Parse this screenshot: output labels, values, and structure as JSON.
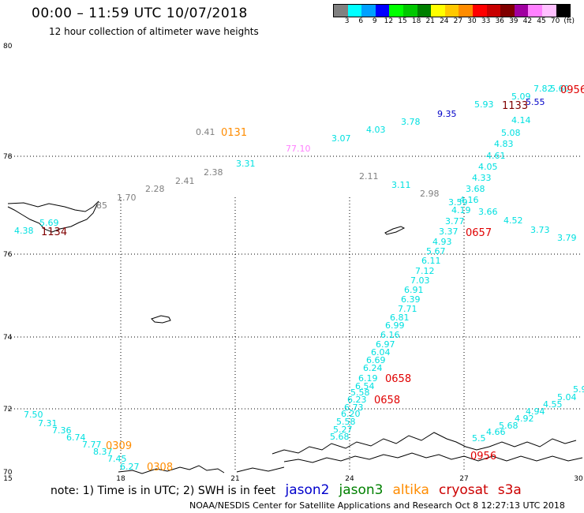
{
  "header": {
    "title": "00:00 – 11:59 UTC 10/07/2018",
    "subtitle": "12 hour collection of altimeter wave heights"
  },
  "color_scale": {
    "labels": [
      "3",
      "6",
      "9",
      "12",
      "15",
      "18",
      "21",
      "24",
      "27",
      "30",
      "33",
      "36",
      "39",
      "42",
      "45",
      "70",
      "(ft)"
    ],
    "colors": [
      "#808080",
      "#00ffff",
      "#00a0ff",
      "#0000ff",
      "#00ff00",
      "#00c800",
      "#008000",
      "#ffff00",
      "#ffc800",
      "#ff8c00",
      "#ff0000",
      "#c80000",
      "#800000",
      "#a000a0",
      "#ff80ff",
      "#ffc0ff",
      "#000000"
    ]
  },
  "axes": {
    "lon_ticks": [
      "15",
      "18",
      "21",
      "24",
      "27",
      "30"
    ],
    "lat_ticks": [
      "70",
      "72",
      "74",
      "76",
      "78",
      "80"
    ]
  },
  "note": {
    "text": "note: 1) Time is in UTC; 2) SWH is in feet",
    "satellites": [
      {
        "name": "jason2",
        "color": "#0000cc"
      },
      {
        "name": "jason3",
        "color": "#008000"
      },
      {
        "name": "altika",
        "color": "#ff8c00"
      },
      {
        "name": "cryosat",
        "color": "#cc0000"
      },
      {
        "name": "s3a",
        "color": "#cc0000"
      }
    ]
  },
  "footer": "NOAA/NESDIS Center for Satellite Applications and Research    Oct  8 12:27:13 UTC 2018",
  "observations": [
    {
      "t": "0.41",
      "c": "#808080"
    },
    {
      "t": "1.70",
      "c": "#808080"
    },
    {
      "t": "2.28",
      "c": "#808080"
    },
    {
      "t": "2.41",
      "c": "#808080"
    },
    {
      "t": "2.38",
      "c": "#808080"
    },
    {
      "t": "2.11",
      "c": "#808080"
    },
    {
      "t": "2.98",
      "c": "#808080"
    },
    {
      "t": "85",
      "c": "#808080"
    },
    {
      "t": "3.31",
      "c": "#00e0e0"
    },
    {
      "t": "3.07",
      "c": "#00e0e0"
    },
    {
      "t": "4.03",
      "c": "#00e0e0"
    },
    {
      "t": "3.78",
      "c": "#00e0e0"
    },
    {
      "t": "3.11",
      "c": "#00e0e0"
    },
    {
      "t": "5.93",
      "c": "#00e0e0"
    },
    {
      "t": "5.09",
      "c": "#00e0e0"
    },
    {
      "t": "7.82",
      "c": "#00e0e0"
    },
    {
      "t": "5.60",
      "c": "#00e0e0"
    },
    {
      "t": "4.14",
      "c": "#00e0e0"
    },
    {
      "t": "5.08",
      "c": "#00e0e0"
    },
    {
      "t": "4.83",
      "c": "#00e0e0"
    },
    {
      "t": "4.61",
      "c": "#00e0e0"
    },
    {
      "t": "4.05",
      "c": "#00e0e0"
    },
    {
      "t": "4.33",
      "c": "#00e0e0"
    },
    {
      "t": "3.68",
      "c": "#00e0e0"
    },
    {
      "t": "3.59",
      "c": "#00e0e0"
    },
    {
      "t": "4.16",
      "c": "#00e0e0"
    },
    {
      "t": "4.19",
      "c": "#00e0e0"
    },
    {
      "t": "3.66",
      "c": "#00e0e0"
    },
    {
      "t": "3.77",
      "c": "#00e0e0"
    },
    {
      "t": "4.52",
      "c": "#00e0e0"
    },
    {
      "t": "3.73",
      "c": "#00e0e0"
    },
    {
      "t": "3.79",
      "c": "#00e0e0"
    },
    {
      "t": "3.37",
      "c": "#00e0e0"
    },
    {
      "t": "4.93",
      "c": "#00e0e0"
    },
    {
      "t": "5.67",
      "c": "#00e0e0"
    },
    {
      "t": "6.11",
      "c": "#00e0e0"
    },
    {
      "t": "7.12",
      "c": "#00e0e0"
    },
    {
      "t": "7.03",
      "c": "#00e0e0"
    },
    {
      "t": "6.91",
      "c": "#00e0e0"
    },
    {
      "t": "6.39",
      "c": "#00e0e0"
    },
    {
      "t": "7.71",
      "c": "#00e0e0"
    },
    {
      "t": "6.81",
      "c": "#00e0e0"
    },
    {
      "t": "6.99",
      "c": "#00e0e0"
    },
    {
      "t": "6.16",
      "c": "#00e0e0"
    },
    {
      "t": "6.97",
      "c": "#00e0e0"
    },
    {
      "t": "6.04",
      "c": "#00e0e0"
    },
    {
      "t": "6.69",
      "c": "#00e0e0"
    },
    {
      "t": "6.24",
      "c": "#00e0e0"
    },
    {
      "t": "6.19",
      "c": "#00e0e0"
    },
    {
      "t": "6.54",
      "c": "#00e0e0"
    },
    {
      "t": "5.58",
      "c": "#00e0e0"
    },
    {
      "t": "6.23",
      "c": "#00e0e0"
    },
    {
      "t": "6.73",
      "c": "#00e0e0"
    },
    {
      "t": "6.20",
      "c": "#00e0e0"
    },
    {
      "t": "5.58",
      "c": "#00e0e0"
    },
    {
      "t": "5.27",
      "c": "#00e0e0"
    },
    {
      "t": "5.68",
      "c": "#00e0e0"
    },
    {
      "t": "5.9",
      "c": "#00e0e0"
    },
    {
      "t": "5.04",
      "c": "#00e0e0"
    },
    {
      "t": "4.55",
      "c": "#00e0e0"
    },
    {
      "t": "4.94",
      "c": "#00e0e0"
    },
    {
      "t": "4.92",
      "c": "#00e0e0"
    },
    {
      "t": "5.68",
      "c": "#00e0e0"
    },
    {
      "t": "4.66",
      "c": "#00e0e0"
    },
    {
      "t": "5.5",
      "c": "#00e0e0"
    },
    {
      "t": "7.50",
      "c": "#00e0e0"
    },
    {
      "t": "7.31",
      "c": "#00e0e0"
    },
    {
      "t": "7.36",
      "c": "#00e0e0"
    },
    {
      "t": "6.74",
      "c": "#00e0e0"
    },
    {
      "t": "7.77",
      "c": "#00e0e0"
    },
    {
      "t": "8.37",
      "c": "#00e0e0"
    },
    {
      "t": "7.45",
      "c": "#00e0e0"
    },
    {
      "t": "6.27",
      "c": "#00e0e0"
    },
    {
      "t": "4.38",
      "c": "#00e0e0"
    },
    {
      "t": "5.69",
      "c": "#00e0e0"
    },
    {
      "t": "9.35",
      "c": "#0000c8"
    },
    {
      "t": "5.55",
      "c": "#0000c8"
    },
    {
      "t": "77.10",
      "c": "#ff80ff"
    }
  ],
  "pass_times": [
    {
      "t": "0131",
      "c": "#ff8c00"
    },
    {
      "t": "0309",
      "c": "#ff8c00"
    },
    {
      "t": "0308",
      "c": "#ff8c00"
    },
    {
      "t": "1134",
      "c": "#800000"
    },
    {
      "t": "1133",
      "c": "#800000"
    },
    {
      "t": "0657",
      "c": "#e00000"
    },
    {
      "t": "0658",
      "c": "#e00000"
    },
    {
      "t": "0658",
      "c": "#e00000"
    },
    {
      "t": "0956",
      "c": "#e00000"
    },
    {
      "t": "0956",
      "c": "#e00000"
    }
  ]
}
